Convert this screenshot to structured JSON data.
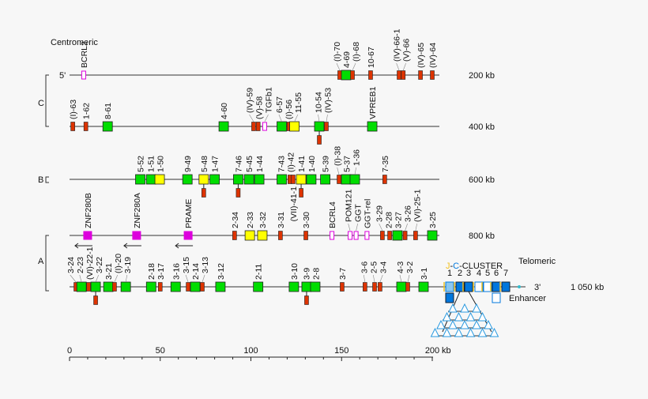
{
  "title_left": "Centromeric",
  "title_right": "Telomeric",
  "five_prime": "5'",
  "three_prime": "3'",
  "end_label": "1 050 kb",
  "enhancer_label": "Enhancer",
  "cluster": {
    "j": "J",
    "dash1": "-",
    "c": "C",
    "rest": "-CLUSTER",
    "numbers": [
      "1",
      "2",
      "3",
      "4",
      "5",
      "6",
      "7"
    ]
  },
  "regions": [
    "C",
    "B",
    "A"
  ],
  "colors": {
    "functional": "#00dd00",
    "orf": "#ffff00",
    "pseudogene": "#dd3300",
    "non_ig_gene": "#dd00dd",
    "jc": "#0077dd",
    "j": "#f0c020",
    "line": "#333333"
  },
  "scale": {
    "ticks": [
      0,
      50,
      100,
      150,
      200
    ],
    "unit": "kb",
    "range_kb": [
      0,
      200
    ]
  },
  "rows": [
    {
      "label": "200 kb",
      "genes": [
        {
          "name": "BCRL2",
          "type": "non_ig_open",
          "kb": 7.8
        },
        {
          "name": "(I)-70",
          "type": "pseudo",
          "kb": 149
        },
        {
          "name": "4-69",
          "type": "functional",
          "kb": 152.5
        },
        {
          "name": "(I)-68",
          "type": "pseudo",
          "kb": 156
        },
        {
          "name": "10-67",
          "type": "pseudo",
          "kb": 166
        },
        {
          "name": "(IV)-66-1",
          "type": "pseudo",
          "kb": 181.7
        },
        {
          "name": "(V)-66",
          "type": "pseudo",
          "kb": 184
        },
        {
          "name": "(IV)-65",
          "type": "pseudo",
          "kb": 193.5
        },
        {
          "name": "(IV)-64",
          "type": "pseudo",
          "kb": 200
        }
      ]
    },
    {
      "label": "400 kb",
      "genes": [
        {
          "name": "(I)-63",
          "type": "pseudo",
          "kb": 1.8
        },
        {
          "name": "1-62",
          "type": "pseudo",
          "kb": 9
        },
        {
          "name": "8-61",
          "type": "functional",
          "kb": 21
        },
        {
          "name": "4-60",
          "type": "functional",
          "kb": 85
        },
        {
          "name": "(IV)-59",
          "type": "pseudo",
          "kb": 101.5
        },
        {
          "name": "(V)-58",
          "type": "pseudo",
          "kb": 104
        },
        {
          "name": "TGFb1",
          "type": "non_ig_open",
          "kb": 107.6
        },
        {
          "name": "6-57",
          "type": "functional",
          "kb": 117
        },
        {
          "name": "(I)-56",
          "type": "pseudo",
          "kb": 121
        },
        {
          "name": "11-55",
          "type": "orf",
          "kb": 124
        },
        {
          "name": "10-54",
          "type": "functional",
          "kb": 137.7,
          "pendant": true
        },
        {
          "name": "(IV)-53",
          "type": "pseudo",
          "kb": 141.6
        },
        {
          "name": "VPREB1",
          "type": "functional",
          "kb": 166.9
        }
      ]
    },
    {
      "label": "600 kb",
      "genes": [
        {
          "name": "5-52",
          "type": "functional",
          "kb": 39
        },
        {
          "name": "1-51",
          "type": "functional",
          "kb": 45
        },
        {
          "name": "1-50",
          "type": "orf",
          "kb": 49.7
        },
        {
          "name": "9-49",
          "type": "functional",
          "kb": 65
        },
        {
          "name": "5-48",
          "type": "orf",
          "kb": 74,
          "pendant": true
        },
        {
          "name": "1-47",
          "type": "functional",
          "kb": 80
        },
        {
          "name": "7-46",
          "type": "functional",
          "kb": 93,
          "pendant": true
        },
        {
          "name": "5-45",
          "type": "functional",
          "kb": 99
        },
        {
          "name": "1-44",
          "type": "functional",
          "kb": 104.6
        },
        {
          "name": "7-43",
          "type": "functional",
          "kb": 117
        },
        {
          "name": "(I)-42",
          "type": "pseudo",
          "kb": 121.5
        },
        {
          "name": "(VII)-41-1",
          "type": "pseudo",
          "kb": 123.3,
          "below": true
        },
        {
          "name": "1-41",
          "type": "orf",
          "kb": 127.7,
          "pendant": true
        },
        {
          "name": "1-40",
          "type": "functional",
          "kb": 133.3
        },
        {
          "name": "5-39",
          "type": "functional",
          "kb": 141
        },
        {
          "name": "(I)-38",
          "type": "pseudo",
          "kb": 148.6
        },
        {
          "name": "5-37",
          "type": "functional",
          "kb": 152.5
        },
        {
          "name": "1-36",
          "type": "functional",
          "kb": 157.3
        },
        {
          "name": "7-35",
          "type": "pseudo",
          "kb": 173.8
        }
      ]
    },
    {
      "label": "800 kb",
      "genes": [
        {
          "name": "ZNF280B",
          "type": "non_ig",
          "kb": 10,
          "arrow": true
        },
        {
          "name": "ZNF280A",
          "type": "non_ig",
          "kb": 37,
          "arrow": true
        },
        {
          "name": "PRAME",
          "type": "non_ig",
          "kb": 65.4,
          "arrow": true
        },
        {
          "name": "2-34",
          "type": "pseudo",
          "kb": 91
        },
        {
          "name": "2-33",
          "type": "orf",
          "kb": 99.4
        },
        {
          "name": "3-32",
          "type": "orf",
          "kb": 106.3
        },
        {
          "name": "3-31",
          "type": "pseudo",
          "kb": 116.3
        },
        {
          "name": "3-30",
          "type": "pseudo",
          "kb": 130.3
        },
        {
          "name": "BCRL4",
          "type": "non_ig_open",
          "kb": 144.7
        },
        {
          "name": "POM121",
          "type": "non_ig_open",
          "kb": 154.7
        },
        {
          "name": "GGT",
          "type": "non_ig_open",
          "kb": 158
        },
        {
          "name": "GGT-rel",
          "type": "non_ig_open",
          "kb": 164
        },
        {
          "name": "3-29",
          "type": "pseudo",
          "kb": 172.5
        },
        {
          "name": "2-28",
          "type": "pseudo",
          "kb": 176.5
        },
        {
          "name": "3-27",
          "type": "functional",
          "kb": 180.8
        },
        {
          "name": "3-26",
          "type": "pseudo",
          "kb": 185
        },
        {
          "name": "(VI)-25-1",
          "type": "pseudo",
          "kb": 190.8
        },
        {
          "name": "3-25",
          "type": "functional",
          "kb": 200
        }
      ]
    },
    {
      "label": "",
      "genes": [
        {
          "name": "3-24",
          "type": "pseudo",
          "kb": 3.5
        },
        {
          "name": "2-23",
          "type": "functional",
          "kb": 6.6
        },
        {
          "name": "(VI)-22-1",
          "type": "pseudo",
          "kb": 10.5
        },
        {
          "name": "3-22",
          "type": "functional",
          "kb": 14.4,
          "pendant": true
        },
        {
          "name": "3-21",
          "type": "functional",
          "kb": 21.4
        },
        {
          "name": "(I)-20",
          "type": "pseudo",
          "kb": 24.8
        },
        {
          "name": "3-19",
          "type": "functional",
          "kb": 31
        },
        {
          "name": "2-18",
          "type": "functional",
          "kb": 45
        },
        {
          "name": "3-17",
          "type": "pseudo",
          "kb": 50
        },
        {
          "name": "3-16",
          "type": "functional",
          "kb": 58.5
        },
        {
          "name": "3-15",
          "type": "pseudo",
          "kb": 65.4
        },
        {
          "name": "2-14",
          "type": "functional",
          "kb": 69.3
        },
        {
          "name": "3-13",
          "type": "pseudo",
          "kb": 73.2
        },
        {
          "name": "3-12",
          "type": "functional",
          "kb": 83.2
        },
        {
          "name": "2-11",
          "type": "functional",
          "kb": 104
        },
        {
          "name": "3-10",
          "type": "functional",
          "kb": 123.7
        },
        {
          "name": "3-9",
          "type": "functional",
          "kb": 130.7,
          "pendant": true
        },
        {
          "name": "2-8",
          "type": "functional",
          "kb": 135.5
        },
        {
          "name": "3-7",
          "type": "pseudo",
          "kb": 150.3
        },
        {
          "name": "3-6",
          "type": "pseudo",
          "kb": 162.9
        },
        {
          "name": "2-5",
          "type": "pseudo",
          "kb": 168.2
        },
        {
          "name": "3-4",
          "type": "pseudo",
          "kb": 171.2
        },
        {
          "name": "4-3",
          "type": "functional",
          "kb": 183
        },
        {
          "name": "3-2",
          "type": "pseudo",
          "kb": 186.5
        },
        {
          "name": "3-1",
          "type": "functional",
          "kb": 195.2
        }
      ]
    }
  ],
  "jc_segments": [
    "hatched",
    "filled",
    "filled",
    "open",
    "open",
    "filled",
    "filled"
  ]
}
